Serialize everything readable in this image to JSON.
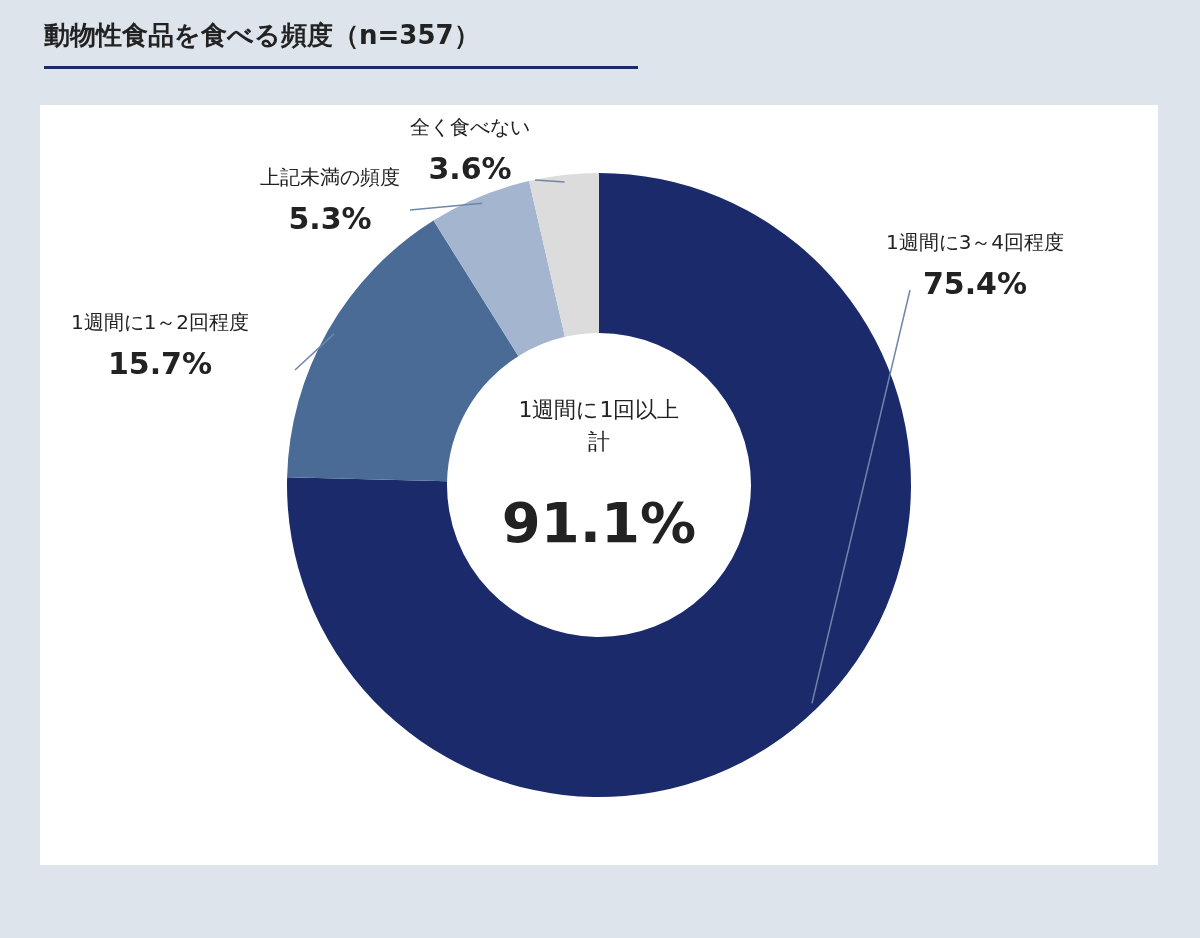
{
  "chart_data": {
    "type": "donut",
    "title": "動物性食品を食べる頻度（n=357）",
    "categories": [
      "1週間に3～4回程度",
      "1週間に1～2回程度",
      "上記未満の頻度",
      "全く食べない"
    ],
    "values": [
      75.4,
      15.7,
      5.3,
      3.6
    ],
    "colors": [
      "#1b2a6b",
      "#4a6b96",
      "#a3b5cf",
      "#dcdcdc"
    ],
    "value_labels": [
      "75.4%",
      "15.7%",
      "5.3%",
      "3.6%"
    ],
    "annotations": [
      "1週間に1回以上",
      "計",
      "91.1%"
    ]
  }
}
